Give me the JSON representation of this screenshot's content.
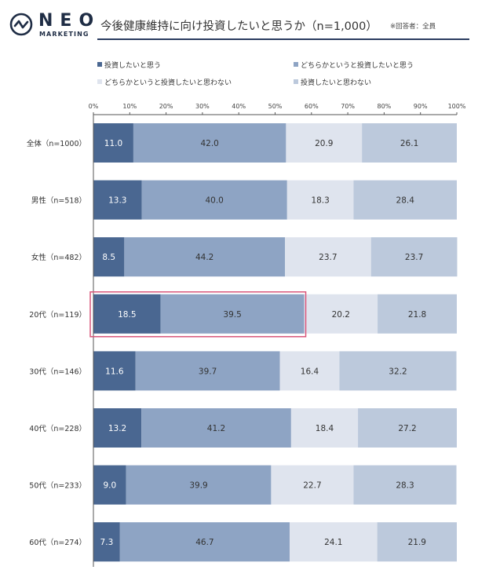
{
  "header": {
    "logo_text": "NEO",
    "logo_sub": "MARKETING",
    "title": "今後健康維持に向け投資したいと思うか（n=1,000）",
    "note": "※回答者：全員"
  },
  "colors": {
    "s1": "#4a6791",
    "s2": "#8ea4c4",
    "s3": "#dfe4ee",
    "s4": "#bcc9dc",
    "highlight": "#d9567a",
    "brand": "#1f2d45"
  },
  "chart_data": {
    "type": "bar",
    "orientation": "horizontal-stacked-100",
    "categories": [
      "全体（n=1000）",
      "男性（n=518）",
      "女性（n=482）",
      "20代（n=119）",
      "30代（n=146）",
      "40代（n=228）",
      "50代（n=233）",
      "60代（n=274）"
    ],
    "series": [
      {
        "name": "投資したいと思う",
        "values": [
          11.0,
          13.3,
          8.5,
          18.5,
          11.6,
          13.2,
          9.0,
          7.3
        ],
        "labels": [
          "11.0",
          "13.3",
          "8.5",
          "18.5",
          "11.6",
          "13.2",
          "9.0",
          "7.3"
        ]
      },
      {
        "name": "どちらかというと投資したいと思う",
        "values": [
          42.0,
          40.0,
          44.2,
          39.5,
          39.7,
          41.2,
          39.9,
          46.7
        ],
        "labels": [
          "42.0",
          "40.0",
          "44.2",
          "39.5",
          "39.7",
          "41.2",
          "39.9",
          "46.7"
        ]
      },
      {
        "name": "どちらかというと投資したいと思わない",
        "values": [
          20.9,
          18.3,
          23.7,
          20.2,
          16.4,
          18.4,
          22.7,
          24.1
        ],
        "labels": [
          "20.9",
          "18.3",
          "23.7",
          "20.2",
          "16.4",
          "18.4",
          "22.7",
          "24.1"
        ]
      },
      {
        "name": "投資したいと思わない",
        "values": [
          26.1,
          28.4,
          23.7,
          21.8,
          32.2,
          27.2,
          28.3,
          21.9
        ],
        "labels": [
          "26.1",
          "28.4",
          "23.7",
          "21.8",
          "32.2",
          "27.2",
          "28.3",
          "21.9"
        ]
      }
    ],
    "xticks": [
      "0%",
      "10%",
      "20%",
      "30%",
      "40%",
      "50%",
      "60%",
      "70%",
      "80%",
      "90%",
      "100%"
    ],
    "xlim": [
      0,
      100
    ],
    "highlight": {
      "category_index": 3,
      "series_count": 2
    },
    "legend_position": "top"
  }
}
